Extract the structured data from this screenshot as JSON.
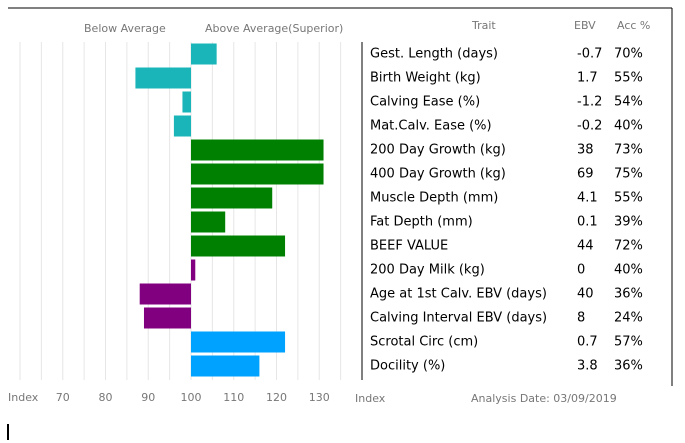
{
  "chart_data": {
    "type": "hbar",
    "header_left": "Below Average",
    "header_right": "Above Average(Superior)",
    "col_trait": "Trait",
    "col_ebv": "EBV",
    "col_acc": "Acc %",
    "axis_label": "Index",
    "table_axis_label": "Index",
    "analysis_date": "Analysis Date: 03/09/2019",
    "categories": [
      "Gest. Length (days)",
      "Birth Weight (kg)",
      "Calving Ease (%)",
      "Mat.Calv. Ease (%)",
      "200 Day Growth (kg)",
      "400 Day Growth (kg)",
      "Muscle Depth (mm)",
      "Fat Depth (mm)",
      "BEEF VALUE",
      "200 Day Milk (kg)",
      "Age at 1st Calv. EBV (days)",
      "Calving Interval EBV (days)",
      "Scrotal Circ (cm)",
      "Docility (%)"
    ],
    "values": [
      106,
      87,
      98,
      96,
      131,
      131,
      119,
      108,
      122,
      101,
      88,
      89,
      122,
      116
    ],
    "colors": [
      "#1ab5b8",
      "#1ab5b8",
      "#1ab5b8",
      "#1ab5b8",
      "#008000",
      "#008000",
      "#008000",
      "#008000",
      "#008000",
      "#800080",
      "#800080",
      "#800080",
      "#00a2ff",
      "#00a2ff"
    ],
    "ebv": [
      "-0.7",
      "1.7",
      "-1.2",
      "-0.2",
      "38",
      "69",
      "4.1",
      "0.1",
      "44",
      "0",
      "40",
      "8",
      "0.7",
      "3.8"
    ],
    "acc": [
      "70%",
      "55%",
      "54%",
      "40%",
      "73%",
      "75%",
      "55%",
      "39%",
      "72%",
      "40%",
      "36%",
      "24%",
      "57%",
      "36%"
    ],
    "base": 100,
    "xlim": [
      60,
      140
    ],
    "xticks": [
      70,
      80,
      90,
      100,
      110,
      120,
      130
    ],
    "xgrid": [
      60,
      65,
      70,
      75,
      80,
      85,
      90,
      95,
      100,
      105,
      110,
      115,
      120,
      125,
      130,
      135,
      140
    ]
  }
}
